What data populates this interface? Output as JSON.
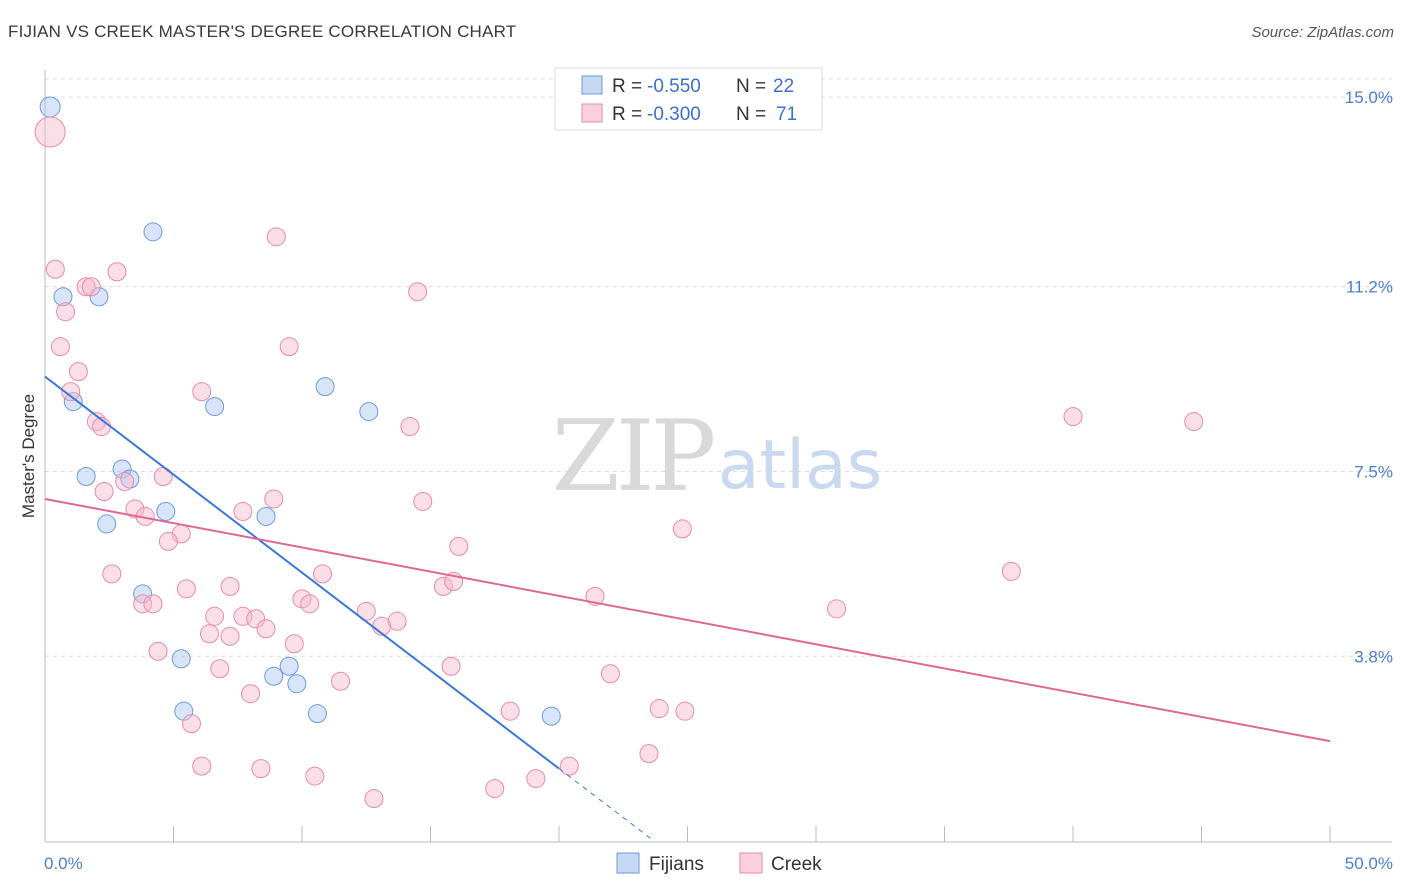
{
  "header": {
    "title": "FIJIAN VS CREEK MASTER'S DEGREE CORRELATION CHART",
    "source": "Source: ZipAtlas.com"
  },
  "watermark": {
    "zip": "ZIP",
    "atlas": "atlas"
  },
  "legend": {
    "rows": [
      {
        "r_label": "R =",
        "r_value": "-0.550",
        "n_label": "N =",
        "n_value": "22",
        "color": "#a9c4ee"
      },
      {
        "r_label": "R =",
        "r_value": "-0.300",
        "n_label": "N =",
        "n_value": "71",
        "color": "#f6b8cb"
      }
    ]
  },
  "chart_data": {
    "type": "scatter",
    "title": "FIJIAN VS CREEK MASTER'S DEGREE CORRELATION CHART",
    "xlabel": "",
    "ylabel": "Master's Degree",
    "xlim": [
      0,
      50
    ],
    "ylim": [
      0,
      15.6
    ],
    "x_tick_labels": [
      "0.0%",
      "50.0%"
    ],
    "y_ticks": [
      3.8,
      7.5,
      11.2,
      15.0
    ],
    "y_tick_labels": [
      "3.8%",
      "7.5%",
      "11.2%",
      "15.0%"
    ],
    "grid": "horizontal dashed",
    "legend_position": "top-center",
    "series": [
      {
        "name": "Fijians",
        "color": "#a9c4ee",
        "stroke": "#6f9ad8",
        "trend_color": "#3a78d8",
        "trend": {
          "x0": 0,
          "y0": 9.4,
          "x1": 20,
          "y1": 1.55
        },
        "trend_dashed_to": {
          "x": 23.7,
          "y": 0.1
        },
        "points": [
          {
            "x": 0.2,
            "y": 14.8,
            "r": 10
          },
          {
            "x": 4.2,
            "y": 12.3
          },
          {
            "x": 0.7,
            "y": 11.0
          },
          {
            "x": 2.1,
            "y": 11.0
          },
          {
            "x": 1.1,
            "y": 8.9
          },
          {
            "x": 6.6,
            "y": 8.8
          },
          {
            "x": 10.9,
            "y": 9.2
          },
          {
            "x": 12.6,
            "y": 8.7
          },
          {
            "x": 1.6,
            "y": 7.4
          },
          {
            "x": 3.0,
            "y": 7.55
          },
          {
            "x": 3.3,
            "y": 7.35
          },
          {
            "x": 2.4,
            "y": 6.45
          },
          {
            "x": 4.7,
            "y": 6.7
          },
          {
            "x": 8.6,
            "y": 6.6
          },
          {
            "x": 3.8,
            "y": 5.05
          },
          {
            "x": 5.3,
            "y": 3.75
          },
          {
            "x": 8.9,
            "y": 3.4
          },
          {
            "x": 9.5,
            "y": 3.6
          },
          {
            "x": 9.8,
            "y": 3.25
          },
          {
            "x": 5.4,
            "y": 2.7
          },
          {
            "x": 10.6,
            "y": 2.65
          },
          {
            "x": 19.7,
            "y": 2.6
          }
        ]
      },
      {
        "name": "Creek",
        "color": "#f6b8cb",
        "stroke": "#e88aaa",
        "trend_color": "#e06794",
        "trend": {
          "x0": 0,
          "y0": 6.95,
          "x1": 50,
          "y1": 2.1
        },
        "points": [
          {
            "x": 0.2,
            "y": 14.3,
            "r": 15
          },
          {
            "x": 0.4,
            "y": 11.55
          },
          {
            "x": 2.8,
            "y": 11.5
          },
          {
            "x": 1.6,
            "y": 11.2
          },
          {
            "x": 1.8,
            "y": 11.2
          },
          {
            "x": 0.8,
            "y": 10.7
          },
          {
            "x": 9.0,
            "y": 12.2
          },
          {
            "x": 14.5,
            "y": 11.1
          },
          {
            "x": 0.6,
            "y": 10.0
          },
          {
            "x": 9.5,
            "y": 10.0
          },
          {
            "x": 1.3,
            "y": 9.5
          },
          {
            "x": 1.0,
            "y": 9.1
          },
          {
            "x": 6.1,
            "y": 9.1
          },
          {
            "x": 2.0,
            "y": 8.5
          },
          {
            "x": 2.2,
            "y": 8.4
          },
          {
            "x": 14.2,
            "y": 8.4
          },
          {
            "x": 40.0,
            "y": 8.6
          },
          {
            "x": 44.7,
            "y": 8.5
          },
          {
            "x": 4.6,
            "y": 7.4
          },
          {
            "x": 3.1,
            "y": 7.3
          },
          {
            "x": 2.3,
            "y": 7.1
          },
          {
            "x": 8.9,
            "y": 6.95
          },
          {
            "x": 14.7,
            "y": 6.9
          },
          {
            "x": 3.5,
            "y": 6.75
          },
          {
            "x": 3.9,
            "y": 6.6
          },
          {
            "x": 7.7,
            "y": 6.7
          },
          {
            "x": 5.3,
            "y": 6.25
          },
          {
            "x": 4.8,
            "y": 6.1
          },
          {
            "x": 24.8,
            "y": 6.35
          },
          {
            "x": 16.1,
            "y": 6.0
          },
          {
            "x": 2.6,
            "y": 5.45
          },
          {
            "x": 10.8,
            "y": 5.45
          },
          {
            "x": 37.6,
            "y": 5.5
          },
          {
            "x": 5.5,
            "y": 5.15
          },
          {
            "x": 7.2,
            "y": 5.2
          },
          {
            "x": 15.5,
            "y": 5.2
          },
          {
            "x": 15.9,
            "y": 5.3
          },
          {
            "x": 21.4,
            "y": 5.0
          },
          {
            "x": 3.8,
            "y": 4.85
          },
          {
            "x": 4.2,
            "y": 4.85
          },
          {
            "x": 10.0,
            "y": 4.95
          },
          {
            "x": 10.3,
            "y": 4.85
          },
          {
            "x": 12.5,
            "y": 4.7
          },
          {
            "x": 30.8,
            "y": 4.75
          },
          {
            "x": 6.6,
            "y": 4.6
          },
          {
            "x": 7.7,
            "y": 4.6
          },
          {
            "x": 8.2,
            "y": 4.55
          },
          {
            "x": 13.7,
            "y": 4.5
          },
          {
            "x": 13.1,
            "y": 4.4
          },
          {
            "x": 8.6,
            "y": 4.35
          },
          {
            "x": 6.4,
            "y": 4.25
          },
          {
            "x": 7.2,
            "y": 4.2
          },
          {
            "x": 9.7,
            "y": 4.05
          },
          {
            "x": 4.4,
            "y": 3.9
          },
          {
            "x": 6.8,
            "y": 3.55
          },
          {
            "x": 15.8,
            "y": 3.6
          },
          {
            "x": 22.0,
            "y": 3.45
          },
          {
            "x": 11.5,
            "y": 3.3
          },
          {
            "x": 8.0,
            "y": 3.05
          },
          {
            "x": 18.1,
            "y": 2.7
          },
          {
            "x": 23.9,
            "y": 2.75
          },
          {
            "x": 24.9,
            "y": 2.7
          },
          {
            "x": 5.7,
            "y": 2.45
          },
          {
            "x": 23.5,
            "y": 1.85
          },
          {
            "x": 6.1,
            "y": 1.6
          },
          {
            "x": 8.4,
            "y": 1.55
          },
          {
            "x": 20.4,
            "y": 1.6
          },
          {
            "x": 10.5,
            "y": 1.4
          },
          {
            "x": 19.1,
            "y": 1.35
          },
          {
            "x": 17.5,
            "y": 1.15
          },
          {
            "x": 12.8,
            "y": 0.95
          }
        ]
      }
    ]
  }
}
